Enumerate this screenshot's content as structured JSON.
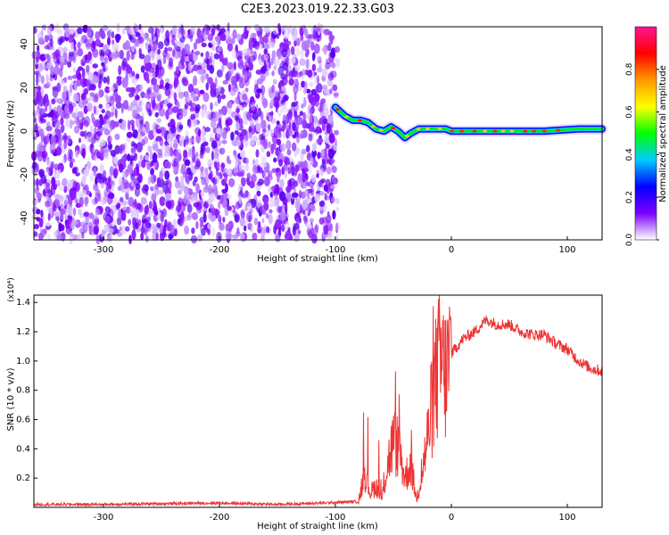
{
  "title": "C2E3.2023.019.22.33.G03",
  "chart_data": [
    {
      "type": "heatmap",
      "xlabel": "Height of straight line (km)",
      "ylabel": "Frequency (Hz)",
      "xlim": [
        -360,
        130
      ],
      "ylim": [
        -50,
        48
      ],
      "xticks": [
        -300,
        -200,
        -100,
        0,
        100
      ],
      "yticks": [
        -40,
        -20,
        0,
        20,
        40
      ],
      "grid": false,
      "noise_region_x": [
        -360,
        -98
      ],
      "signal_track": {
        "x": [
          -100,
          -92,
          -85,
          -78,
          -72,
          -65,
          -58,
          -52,
          -46,
          -40,
          -35,
          -28,
          -20,
          -12,
          -5,
          0,
          20,
          50,
          80,
          110,
          130
        ],
        "frequency": [
          11,
          7,
          5,
          5,
          4,
          1,
          0,
          2,
          0,
          -3,
          -1,
          1,
          1,
          1,
          1,
          0,
          0,
          0,
          0,
          1,
          1
        ]
      },
      "colorbar": {
        "label": "Normalized spectral amplitude",
        "range": [
          0,
          1
        ],
        "ticks": [
          0.0,
          0.2,
          0.4,
          0.6,
          0.8
        ],
        "tick_labels": [
          "0.0",
          "0.2",
          "0.4",
          "0.6",
          "0.8"
        ],
        "colors": [
          "#ffffff",
          "#7b00ff",
          "#0000ff",
          "#00ccff",
          "#00ff00",
          "#ffff00",
          "#ff9900",
          "#ff0000",
          "#ff1493"
        ]
      }
    },
    {
      "type": "line",
      "xlabel": "Height of straight line (km)",
      "ylabel": "SNR (10 * v/v)",
      "multiplier_label": "(x10⁴)",
      "xlim": [
        -360,
        130
      ],
      "ylim": [
        0,
        1.45
      ],
      "xticks": [
        -300,
        -200,
        -100,
        0,
        100
      ],
      "yticks": [
        0.2,
        0.4,
        0.6,
        0.8,
        1.0,
        1.2,
        1.4
      ],
      "ytick_labels": [
        "0.2",
        "0.4",
        "0.6",
        "0.8",
        "1.0",
        "1.2",
        "1.4"
      ],
      "grid": false,
      "series": [
        {
          "color": "#ee3333",
          "x": [
            -360,
            -300,
            -200,
            -150,
            -110,
            -80,
            -75,
            -70,
            -65,
            -60,
            -55,
            -50,
            -45,
            -40,
            -35,
            -30,
            -25,
            -20,
            -15,
            -10,
            -5,
            0,
            10,
            20,
            30,
            40,
            50,
            60,
            70,
            80,
            90,
            100,
            110,
            120,
            130
          ],
          "y": [
            0.02,
            0.02,
            0.03,
            0.02,
            0.03,
            0.04,
            0.25,
            0.1,
            0.15,
            0.05,
            0.3,
            0.45,
            0.4,
            0.2,
            0.3,
            0.05,
            0.25,
            0.5,
            0.8,
            1.0,
            0.9,
            1.05,
            1.15,
            1.2,
            1.28,
            1.25,
            1.25,
            1.2,
            1.18,
            1.18,
            1.12,
            1.08,
            1.0,
            0.95,
            0.93
          ]
        }
      ]
    }
  ]
}
